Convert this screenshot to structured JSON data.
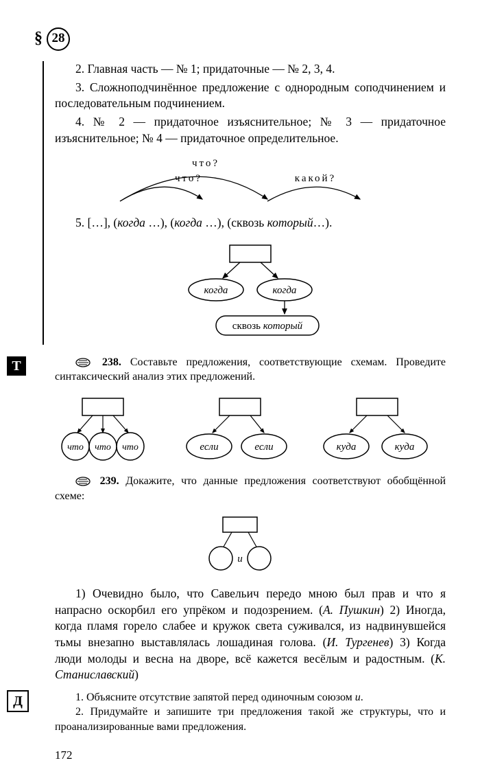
{
  "section": {
    "symbol": "§",
    "number": "28"
  },
  "intro": {
    "p2": "2. Главная часть — № 1; придаточные — № 2, 3, 4.",
    "p3": "3. Сложноподчинённое предложение с однородным соподчинением и последовательным подчинением.",
    "p4": "4. № 2 — придаточное изъяснительное; № 3 — придаточное изъяснительное; № 4 — придаточное определительное."
  },
  "scheme5": {
    "q1": "что?",
    "q2": "что?",
    "q3": "какой?",
    "line_prefix": "5.  […], (",
    "k1": "когда",
    "sep1": " …), (",
    "k2": "когда",
    "sep2": " …), (сквозь ",
    "k3": "который",
    "suffix": "…).",
    "node1": "когда",
    "node2": "когда",
    "node3_a": "сквозь ",
    "node3_b": "который"
  },
  "ex238": {
    "num": "238.",
    "text": "Составьте предложения, соответствующие схемам. Проведите синтаксический анализ этих предложений.",
    "g1": {
      "a": "что",
      "b": "что",
      "c": "что"
    },
    "g2": {
      "a": "если",
      "b": "если"
    },
    "g3": {
      "a": "куда",
      "b": "куда"
    }
  },
  "ex239": {
    "num": "239.",
    "text": "Докажите, что данные предложения соответствуют обобщённой схеме:",
    "conj": "и"
  },
  "body": {
    "t1a": "1) Очевидно было, что Савельич передо мною был прав и что я напрасно оскорбил его упрёком и подозрением. (",
    "t1b": "А. Пушкин",
    "t1c": ") 2) Иногда, когда пламя горело слабее и кружок света суживался, из надвинувшейся тьмы внезапно выставлялась лошадиная голова. (",
    "t1d": "И. Тургенев",
    "t1e": ") 3) Когда люди молоды и весна на дворе, всё кажется весёлым и радостным. (",
    "t1f": "К. Станиславский",
    "t1g": ")"
  },
  "tasks": {
    "t1a": "1. Объясните отсутствие запятой перед одиночным союзом ",
    "t1b": "и",
    "t1c": ".",
    "t2": "2. Придумайте и запишите три предложения такой же структуры, что и проанализированные вами предложения."
  },
  "pagenum": "172",
  "iconT": "Т",
  "iconD": "Д"
}
